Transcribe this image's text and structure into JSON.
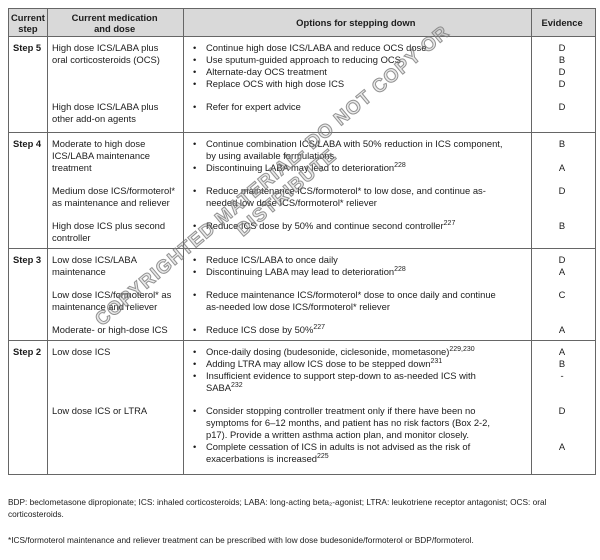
{
  "watermark": "COPYRIGHTED MATERIAL- DO NOT COPY OR DISTRIBUTE",
  "glyphs": {
    "bullet": "•"
  },
  "colors": {
    "header_bg": "#d9d9d9",
    "border": "#666666",
    "text": "#1c1c1c",
    "watermark": "#8a8a8a"
  },
  "table": {
    "headers": [
      "Current\nstep",
      "Current medication\nand dose",
      "Options for stepping down",
      "Evidence"
    ],
    "rows": [
      {
        "step": "Step 5",
        "groups": [
          {
            "medication": "High dose ICS/LABA plus\noral corticosteroids (OCS)",
            "options": [
              {
                "text": "Continue high dose ICS/LABA and reduce OCS dose",
                "evidence": "D"
              },
              {
                "text": "Use sputum-guided approach to reducing OCS",
                "evidence": "B"
              },
              {
                "text": "Alternate-day OCS treatment",
                "evidence": "D"
              },
              {
                "text": "Replace OCS with high dose ICS",
                "evidence": "D"
              }
            ]
          },
          {
            "medication": "High dose ICS/LABA plus\nother add-on agents",
            "options": [
              {
                "text": "Refer for expert advice",
                "evidence": "D"
              }
            ]
          }
        ]
      },
      {
        "step": "Step 4",
        "groups": [
          {
            "medication": "Moderate to high dose\nICS/LABA maintenance\ntreatment",
            "options": [
              {
                "text": "Continue combination ICS/LABA with 50% reduction in ICS component,\nby using available formulations",
                "evidence": "B"
              },
              {
                "text": "Discontinuing LABA may lead to deterioration",
                "ref": "228",
                "evidence": "A"
              }
            ]
          },
          {
            "medication": "Medium dose ICS/formoterol*\nas maintenance and reliever",
            "options": [
              {
                "text": "Reduce maintenance ICS/formoterol* to low dose, and continue as-\nneeded low dose ICS/formoterol* reliever",
                "evidence": "D"
              }
            ]
          },
          {
            "medication": "High dose ICS plus second\ncontroller",
            "options": [
              {
                "text": "Reduce ICS dose by 50% and continue second controller",
                "ref": "227",
                "evidence": "B"
              }
            ]
          }
        ]
      },
      {
        "step": "Step 3",
        "groups": [
          {
            "medication": "Low dose ICS/LABA\nmaintenance",
            "options": [
              {
                "text": "Reduce ICS/LABA to once daily",
                "evidence": "D"
              },
              {
                "text": "Discontinuing LABA may lead to deterioration",
                "ref": "228",
                "evidence": "A"
              }
            ]
          },
          {
            "medication": "Low dose ICS/formoterol* as\nmaintenance and reliever",
            "options": [
              {
                "text": "Reduce maintenance ICS/formoterol* dose to once daily and continue\nas-needed low dose ICS/formoterol* reliever",
                "evidence": "C"
              }
            ]
          },
          {
            "medication": "Moderate- or high-dose ICS",
            "options": [
              {
                "text": "Reduce ICS dose by 50%",
                "ref": "227",
                "evidence": "A"
              }
            ]
          }
        ]
      },
      {
        "step": "Step 2",
        "groups": [
          {
            "medication": "Low dose ICS",
            "options": [
              {
                "text": "Once-daily dosing (budesonide, ciclesonide, mometasone)",
                "ref": "229,230",
                "evidence": "A"
              },
              {
                "text": "Adding LTRA may allow ICS dose to be stepped down",
                "ref": "231",
                "evidence": "B"
              },
              {
                "text": "Insufficient evidence to support step-down to as-needed ICS with\nSABA",
                "ref": "232",
                "evidence": "-"
              }
            ]
          },
          {
            "medication": "Low dose ICS or LTRA",
            "options": [
              {
                "text": "Consider stopping controller treatment only if there have been no\nsymptoms for 6–12 months, and patient has no risk factors (Box 2-2,\np17). Provide a written asthma action plan, and monitor closely.",
                "evidence": "D"
              },
              {
                "text": "Complete cessation of ICS in adults is not advised as the risk of\nexacerbations is increased",
                "ref": "225",
                "evidence": "A"
              }
            ]
          }
        ]
      }
    ]
  },
  "footnotes": [
    "BDP: beclometasone dipropionate; ICS: inhaled corticosteroids; LABA: long-acting beta₂-agonist; LTRA: leukotriene receptor antagonist; OCS: oral\ncorticosteroids.",
    "*ICS/formoterol maintenance and reliever treatment can be prescribed with low dose budesonide/formoterol or BDP/formoterol."
  ]
}
